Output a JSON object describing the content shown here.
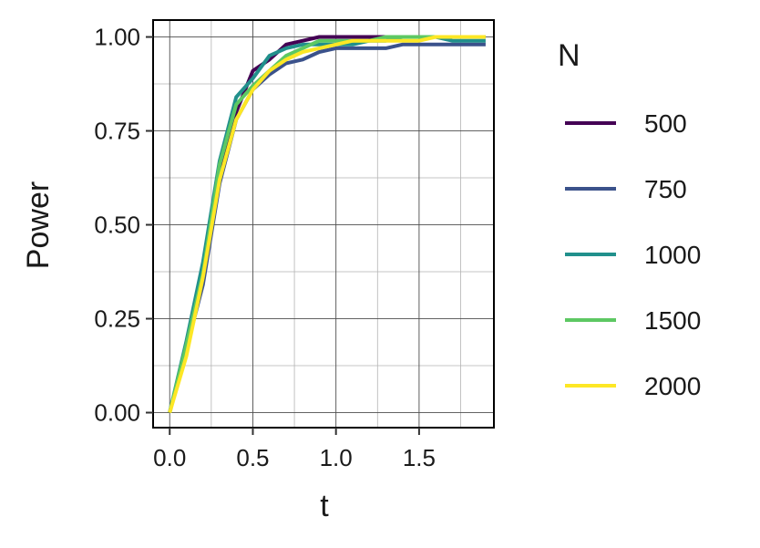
{
  "chart_data": {
    "type": "line",
    "xlabel": "t",
    "ylabel": "Power",
    "xlim": [
      -0.1,
      1.95
    ],
    "ylim": [
      -0.04,
      1.045
    ],
    "x_ticks": [
      0.0,
      0.5,
      1.0,
      1.5
    ],
    "x_tick_labels": [
      "0.0",
      "0.5",
      "1.0",
      "1.5"
    ],
    "y_ticks": [
      0.0,
      0.25,
      0.5,
      0.75,
      1.0
    ],
    "y_tick_labels": [
      "0.00",
      "0.25",
      "0.50",
      "0.75",
      "1.00"
    ],
    "grid": true,
    "legend_title": "N",
    "legend_position": "right",
    "x": [
      0.0,
      0.1,
      0.2,
      0.3,
      0.4,
      0.5,
      0.6,
      0.7,
      0.8,
      0.9,
      1.0,
      1.1,
      1.2,
      1.3,
      1.4,
      1.5,
      1.6,
      1.7,
      1.8,
      1.9
    ],
    "series": [
      {
        "name": "500",
        "color": "#440154",
        "values": [
          0.0,
          0.17,
          0.35,
          0.64,
          0.8,
          0.91,
          0.94,
          0.98,
          0.99,
          1.0,
          1.0,
          1.0,
          1.0,
          1.0,
          1.0,
          1.0,
          1.0,
          1.0,
          1.0,
          1.0
        ]
      },
      {
        "name": "750",
        "color": "#3b528b",
        "values": [
          0.0,
          0.17,
          0.34,
          0.61,
          0.78,
          0.86,
          0.9,
          0.93,
          0.94,
          0.96,
          0.97,
          0.97,
          0.97,
          0.97,
          0.98,
          0.98,
          0.98,
          0.98,
          0.98,
          0.98
        ]
      },
      {
        "name": "1000",
        "color": "#21908c",
        "values": [
          0.0,
          0.19,
          0.4,
          0.67,
          0.84,
          0.89,
          0.95,
          0.97,
          0.98,
          0.98,
          0.98,
          0.98,
          0.99,
          0.99,
          1.0,
          1.0,
          1.0,
          0.99,
          0.99,
          0.99
        ]
      },
      {
        "name": "1500",
        "color": "#5dc863",
        "values": [
          0.0,
          0.18,
          0.37,
          0.66,
          0.82,
          0.87,
          0.91,
          0.95,
          0.97,
          0.99,
          0.99,
          0.99,
          0.99,
          1.0,
          1.0,
          1.0,
          1.0,
          1.0,
          1.0,
          1.0
        ]
      },
      {
        "name": "2000",
        "color": "#fde725",
        "values": [
          0.0,
          0.15,
          0.36,
          0.62,
          0.78,
          0.86,
          0.91,
          0.94,
          0.96,
          0.97,
          0.98,
          0.99,
          0.99,
          0.99,
          0.99,
          0.99,
          1.0,
          1.0,
          1.0,
          1.0
        ]
      }
    ]
  }
}
